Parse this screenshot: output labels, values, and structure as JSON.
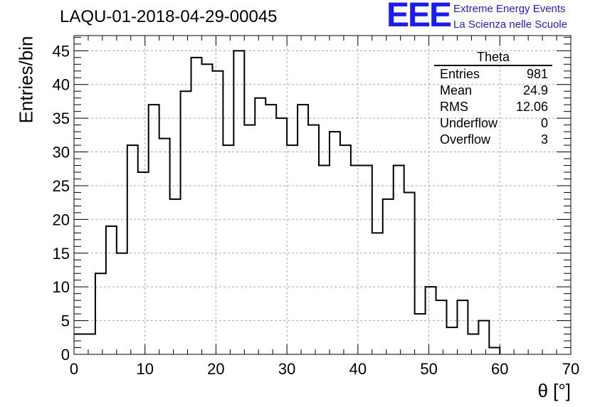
{
  "run_title": "LAQU-01-2018-04-29-00045",
  "logo": {
    "mark": "EEE",
    "line1": "Extreme Energy Events",
    "line2": "La Scienza nelle Scuole"
  },
  "stats_box": {
    "title": "Theta",
    "rows": [
      {
        "label": "Entries",
        "value": "981"
      },
      {
        "label": "Mean",
        "value": "24.9"
      },
      {
        "label": "RMS",
        "value": "12.06"
      },
      {
        "label": "Underflow",
        "value": "0"
      },
      {
        "label": "Overflow",
        "value": "3"
      }
    ]
  },
  "chart_data": {
    "type": "bar",
    "title": "LAQU-01-2018-04-29-00045",
    "xlabel": "θ [°]",
    "ylabel": "Entries/bin",
    "xlim": [
      0,
      70
    ],
    "ylim": [
      0,
      47.25
    ],
    "grid": true,
    "bin_width": 1.5,
    "bin_edges_start": 0,
    "values": [
      3,
      3,
      12,
      19,
      15,
      31,
      27,
      37,
      32,
      23,
      39,
      44,
      43,
      42,
      31,
      45,
      34,
      38,
      37,
      35,
      31,
      37,
      34,
      28,
      33,
      31,
      28,
      28,
      18,
      23,
      28,
      24,
      6,
      10,
      8,
      4,
      8,
      3,
      5,
      1
    ],
    "x_ticks": [
      0,
      10,
      20,
      30,
      40,
      50,
      60,
      70
    ],
    "y_ticks": [
      0,
      5,
      10,
      15,
      20,
      25,
      30,
      35,
      40,
      45
    ],
    "line_color": "#000000",
    "grid_color": "#aaaaaa"
  }
}
